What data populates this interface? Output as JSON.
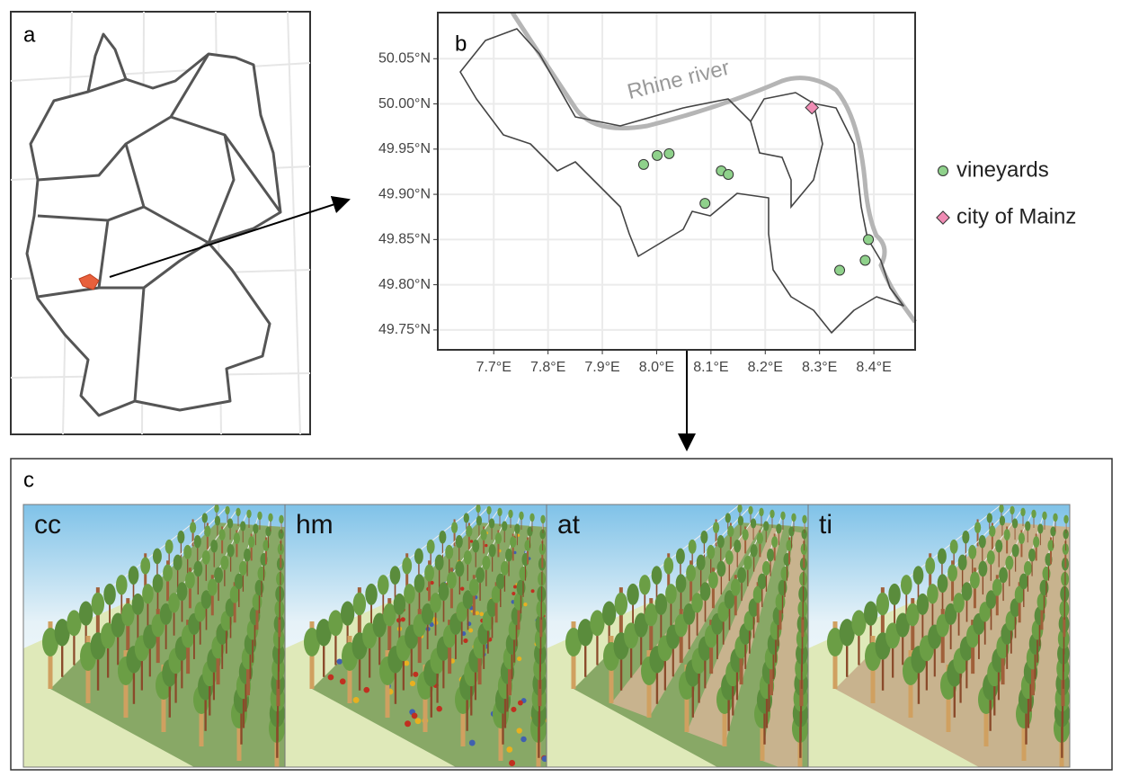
{
  "panel_a": {
    "label": "a"
  },
  "chart_data": {
    "type": "scatter",
    "label": "b",
    "annotation": "Rhine river",
    "xlim": [
      7.597,
      8.476
    ],
    "ylim": [
      49.728,
      50.101
    ],
    "xticks": [
      {
        "value": 7.7,
        "label": "7.7°E"
      },
      {
        "value": 7.8,
        "label": "7.8°E"
      },
      {
        "value": 7.9,
        "label": "7.9°E"
      },
      {
        "value": 8.0,
        "label": "8.0°E"
      },
      {
        "value": 8.1,
        "label": "8.1°E"
      },
      {
        "value": 8.2,
        "label": "8.2°E"
      },
      {
        "value": 8.3,
        "label": "8.3°E"
      },
      {
        "value": 8.4,
        "label": "8.4°E"
      }
    ],
    "yticks": [
      {
        "value": 49.75,
        "label": "49.75°N"
      },
      {
        "value": 49.8,
        "label": "49.80°N"
      },
      {
        "value": 49.85,
        "label": "49.85°N"
      },
      {
        "value": 49.9,
        "label": "49.90°N"
      },
      {
        "value": 49.95,
        "label": "49.95°N"
      },
      {
        "value": 50.0,
        "label": "50.00°N"
      },
      {
        "value": 50.05,
        "label": "50.05°N"
      }
    ],
    "grid": true,
    "series": [
      {
        "name": "vineyards",
        "color": "#8fd18b",
        "marker": "circle",
        "x": [
          7.976,
          8.001,
          8.023,
          8.119,
          8.132,
          8.089,
          8.39,
          8.384,
          8.337
        ],
        "y": [
          49.933,
          49.943,
          49.945,
          49.926,
          49.922,
          49.89,
          49.85,
          49.827,
          49.816
        ]
      },
      {
        "name": "city of Mainz",
        "color": "#f08cb4",
        "marker": "diamond",
        "x": [
          8.286
        ],
        "y": [
          49.996
        ]
      }
    ]
  },
  "panel_c": {
    "label": "c",
    "scenes": [
      "cc",
      "hm",
      "at",
      "ti"
    ]
  }
}
